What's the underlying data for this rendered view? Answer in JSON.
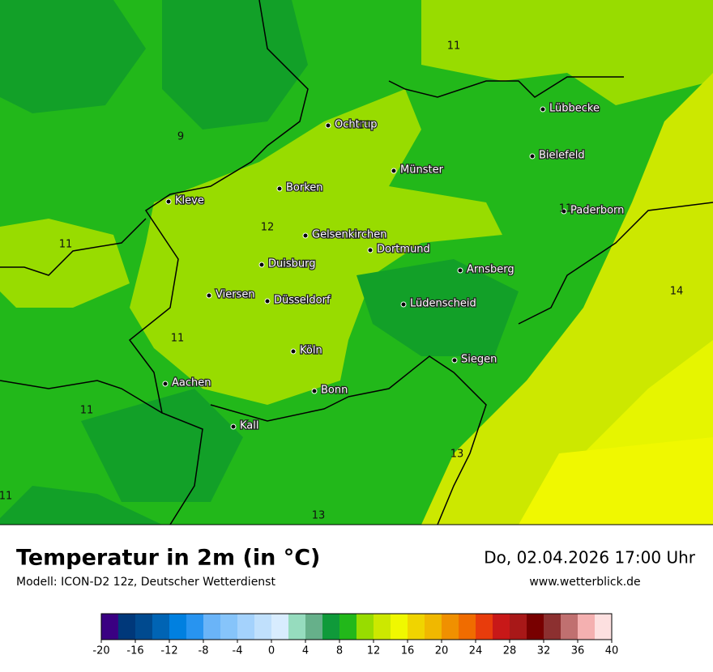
{
  "header": {
    "title": "Temperatur in 2m (in °C)",
    "subtitle": "Modell: ICON-D2 12z, Deutscher Wetterdienst",
    "datetime": "Do, 02.04.2026 17:00 Uhr",
    "website": "www.wetterblick.de"
  },
  "map": {
    "cities": [
      "Lübbecke",
      "Ochtrup",
      "Bielefeld",
      "Münster",
      "Borken",
      "Kleve",
      "Paderborn",
      "Gelsenkirchen",
      "Dortmund",
      "Duisburg",
      "Arnsberg",
      "Viersen",
      "Düsseldorf",
      "Lüdenscheid",
      "Köln",
      "Siegen",
      "Aachen",
      "Bonn",
      "Kall"
    ],
    "contour_labels": [
      "11",
      "9",
      "11",
      "12",
      "11",
      "11",
      "14",
      "11",
      "11",
      "13",
      "11",
      "13"
    ]
  },
  "colorbar": {
    "range": [
      -20,
      40
    ],
    "ticks": [
      -20,
      -16,
      -12,
      -8,
      -4,
      0,
      4,
      8,
      12,
      16,
      20,
      24,
      28,
      32,
      36,
      40
    ],
    "colors": [
      "#3a0082",
      "#00387a",
      "#004a8f",
      "#0064b4",
      "#0080e0",
      "#2894f0",
      "#6ab4f8",
      "#86c4fa",
      "#a4d2fc",
      "#c0e0fc",
      "#d8ecfe",
      "#96dcbe",
      "#66b08a",
      "#0f9a3a",
      "#22b81a",
      "#98dc00",
      "#cce800",
      "#f0f800",
      "#f0d400",
      "#f0b800",
      "#f09000",
      "#f06c00",
      "#e83c0c",
      "#c81818",
      "#a81818",
      "#780000",
      "#8c3030",
      "#c07070",
      "#f4b0b0",
      "#fde0e0"
    ]
  }
}
